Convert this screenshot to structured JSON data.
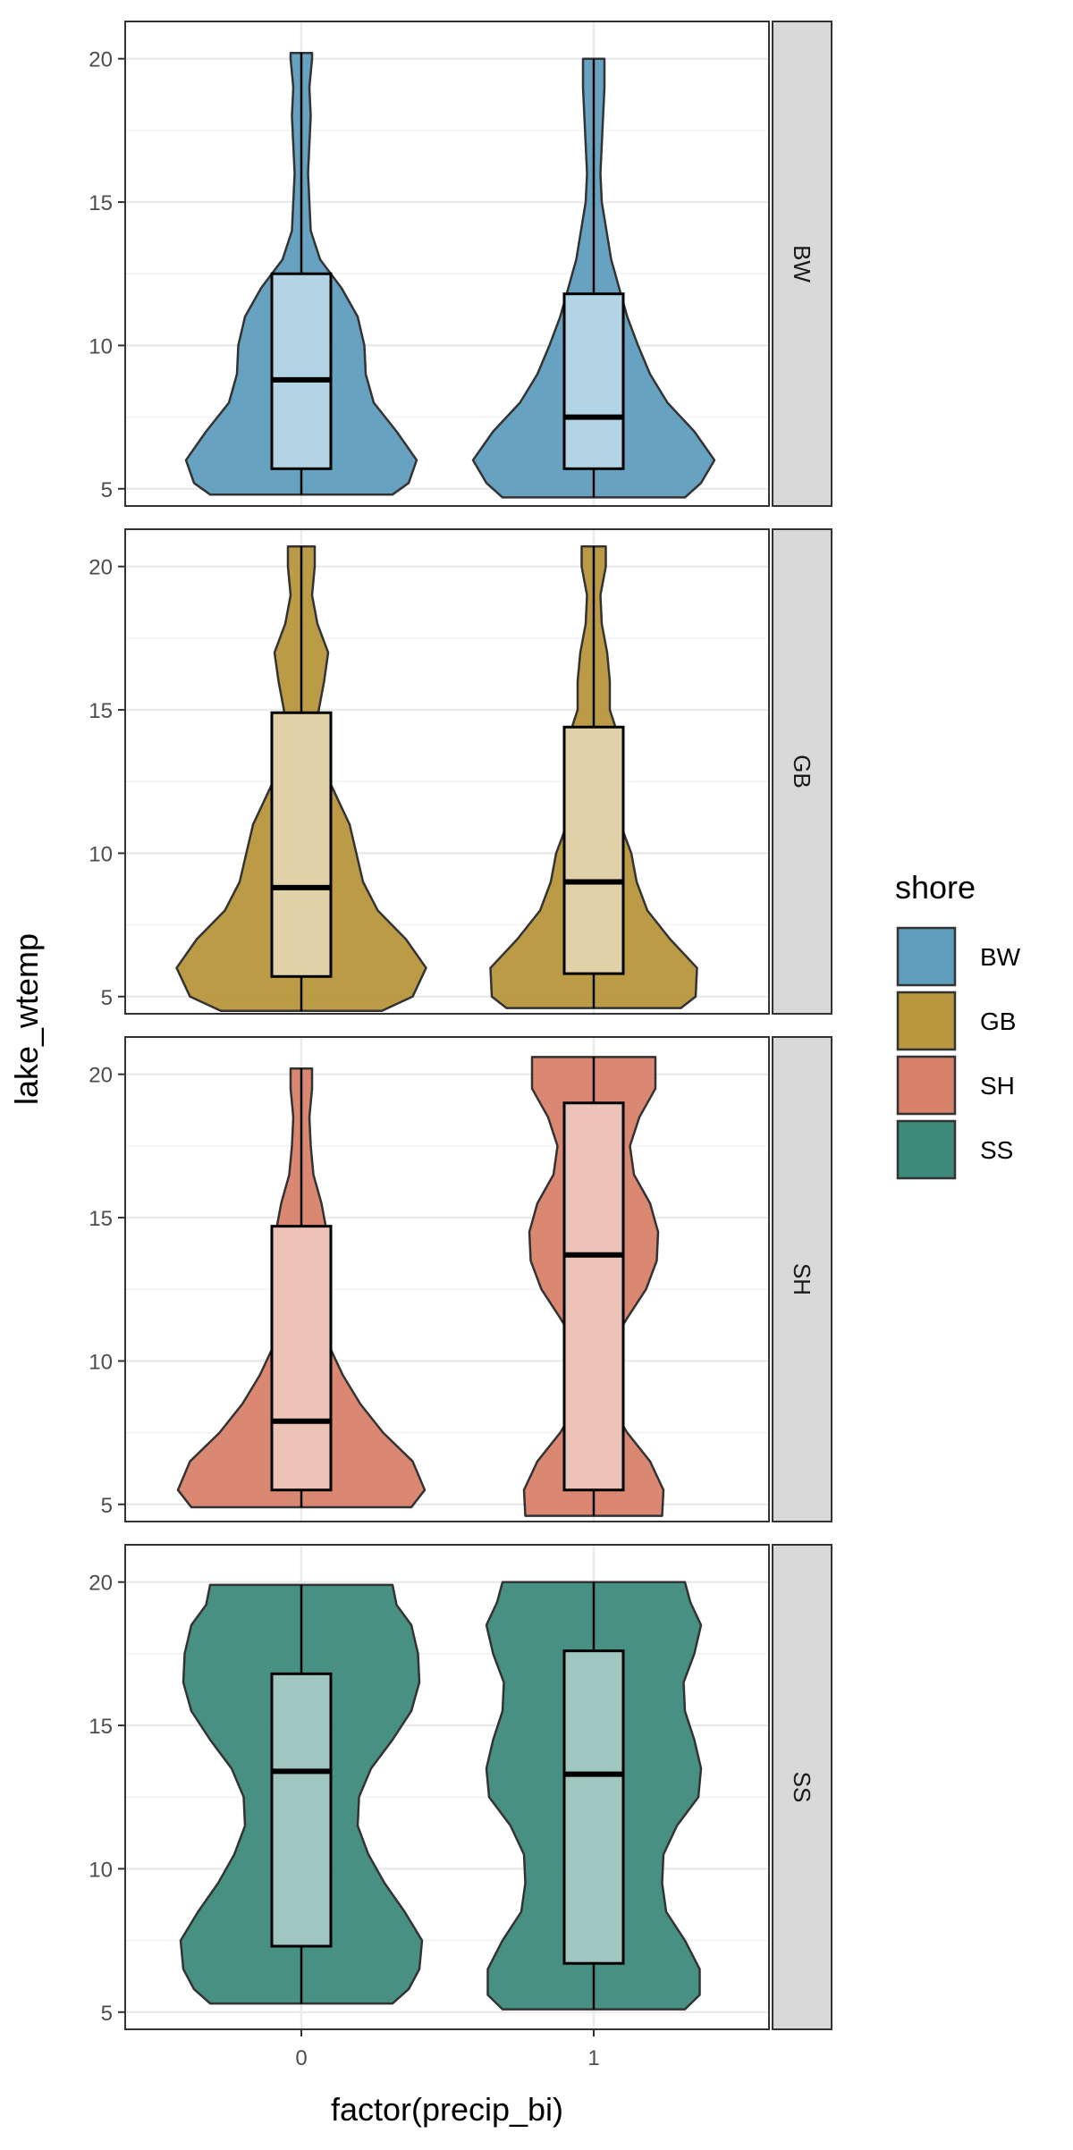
{
  "chart_data": {
    "type": "violin",
    "xlabel": "factor(precip_bi)",
    "ylabel": "lake_wtemp",
    "categories": [
      "0",
      "1"
    ],
    "ylim": [
      4.4,
      21.3
    ],
    "yticks": [
      5,
      10,
      15,
      20
    ],
    "facet_labels": [
      "BW",
      "GB",
      "SH",
      "SS"
    ],
    "legend": {
      "title": "shore",
      "placement": "right",
      "entries": [
        {
          "label": "BW",
          "color": "#5f9dbd"
        },
        {
          "label": "GB",
          "color": "#b8963d"
        },
        {
          "label": "SH",
          "color": "#d8826a"
        },
        {
          "label": "SS",
          "color": "#3e8a7c"
        }
      ]
    },
    "grid": true,
    "panels": [
      {
        "facet": "BW",
        "color": "#5f9dbd",
        "box_fill": "#b3d4e4",
        "groups": [
          {
            "x": "0",
            "min": 4.8,
            "q1": 5.7,
            "median": 8.8,
            "q3": 12.5,
            "max": 20.2,
            "density": [
              [
                4.8,
                0.68
              ],
              [
                5.2,
                0.8
              ],
              [
                6,
                0.86
              ],
              [
                7,
                0.71
              ],
              [
                8,
                0.54
              ],
              [
                9,
                0.48
              ],
              [
                10,
                0.47
              ],
              [
                11,
                0.42
              ],
              [
                12,
                0.3
              ],
              [
                13,
                0.14
              ],
              [
                14,
                0.07
              ],
              [
                16,
                0.05
              ],
              [
                18,
                0.07
              ],
              [
                19,
                0.06
              ],
              [
                20,
                0.08
              ],
              [
                20.2,
                0.08
              ]
            ]
          },
          {
            "x": "1",
            "min": 4.7,
            "q1": 5.7,
            "median": 7.5,
            "q3": 11.8,
            "max": 20.0,
            "density": [
              [
                4.7,
                0.68
              ],
              [
                5.2,
                0.8
              ],
              [
                6,
                0.9
              ],
              [
                7,
                0.75
              ],
              [
                8,
                0.55
              ],
              [
                9,
                0.42
              ],
              [
                10,
                0.33
              ],
              [
                11,
                0.25
              ],
              [
                12,
                0.19
              ],
              [
                13,
                0.13
              ],
              [
                15,
                0.06
              ],
              [
                16,
                0.05
              ],
              [
                17,
                0.06
              ],
              [
                18,
                0.07
              ],
              [
                19,
                0.08
              ],
              [
                20,
                0.08
              ]
            ]
          }
        ]
      },
      {
        "facet": "GB",
        "color": "#b8963d",
        "box_fill": "#e1d1a9",
        "groups": [
          {
            "x": "0",
            "min": 4.5,
            "q1": 5.7,
            "median": 8.8,
            "q3": 14.9,
            "max": 20.7,
            "density": [
              [
                4.5,
                0.6
              ],
              [
                5,
                0.83
              ],
              [
                6,
                0.93
              ],
              [
                7,
                0.78
              ],
              [
                8,
                0.57
              ],
              [
                9,
                0.46
              ],
              [
                10,
                0.41
              ],
              [
                11,
                0.36
              ],
              [
                12,
                0.26
              ],
              [
                13,
                0.16
              ],
              [
                14,
                0.11
              ],
              [
                15,
                0.13
              ],
              [
                16,
                0.17
              ],
              [
                17,
                0.2
              ],
              [
                18,
                0.12
              ],
              [
                19,
                0.08
              ],
              [
                20,
                0.1
              ],
              [
                20.7,
                0.1
              ]
            ]
          },
          {
            "x": "1",
            "min": 4.6,
            "q1": 5.8,
            "median": 9.0,
            "q3": 14.4,
            "max": 20.7,
            "density": [
              [
                4.6,
                0.65
              ],
              [
                5,
                0.76
              ],
              [
                6,
                0.77
              ],
              [
                7,
                0.57
              ],
              [
                8,
                0.4
              ],
              [
                9,
                0.32
              ],
              [
                10,
                0.28
              ],
              [
                11,
                0.2
              ],
              [
                12,
                0.19
              ],
              [
                13,
                0.2
              ],
              [
                14,
                0.19
              ],
              [
                15,
                0.12
              ],
              [
                16,
                0.12
              ],
              [
                17,
                0.1
              ],
              [
                18,
                0.06
              ],
              [
                19,
                0.05
              ],
              [
                20,
                0.09
              ],
              [
                20.7,
                0.09
              ]
            ]
          }
        ]
      },
      {
        "facet": "SH",
        "color": "#d8826a",
        "box_fill": "#ecc3b6",
        "groups": [
          {
            "x": "0",
            "min": 4.9,
            "q1": 5.5,
            "median": 7.9,
            "q3": 14.7,
            "max": 20.2,
            "density": [
              [
                4.9,
                0.82
              ],
              [
                5.5,
                0.92
              ],
              [
                6.5,
                0.83
              ],
              [
                7.5,
                0.61
              ],
              [
                8.5,
                0.44
              ],
              [
                9.5,
                0.31
              ],
              [
                10.5,
                0.21
              ],
              [
                11.5,
                0.14
              ],
              [
                12.5,
                0.11
              ],
              [
                13.5,
                0.15
              ],
              [
                14.5,
                0.19
              ],
              [
                15.5,
                0.15
              ],
              [
                16.5,
                0.09
              ],
              [
                17.5,
                0.07
              ],
              [
                18.5,
                0.06
              ],
              [
                19.5,
                0.08
              ],
              [
                20.2,
                0.08
              ]
            ]
          },
          {
            "x": "1",
            "min": 4.6,
            "q1": 5.5,
            "median": 13.7,
            "q3": 19.0,
            "max": 20.6,
            "density": [
              [
                4.6,
                0.51
              ],
              [
                5.5,
                0.52
              ],
              [
                6.5,
                0.42
              ],
              [
                7.5,
                0.25
              ],
              [
                8.5,
                0.12
              ],
              [
                9.5,
                0.04
              ],
              [
                10.5,
                0.12
              ],
              [
                11.5,
                0.25
              ],
              [
                12.5,
                0.39
              ],
              [
                13.5,
                0.47
              ],
              [
                14.5,
                0.48
              ],
              [
                15.5,
                0.42
              ],
              [
                16.5,
                0.3
              ],
              [
                17.5,
                0.27
              ],
              [
                18.5,
                0.34
              ],
              [
                19.5,
                0.46
              ],
              [
                20.6,
                0.46
              ]
            ]
          }
        ]
      },
      {
        "facet": "SS",
        "color": "#3e8a7c",
        "box_fill": "#9fc6bf",
        "groups": [
          {
            "x": "0",
            "min": 5.3,
            "q1": 7.3,
            "median": 13.4,
            "q3": 16.8,
            "max": 19.9,
            "density": [
              [
                5.3,
                0.68
              ],
              [
                5.8,
                0.8
              ],
              [
                6.5,
                0.88
              ],
              [
                7.5,
                0.9
              ],
              [
                8.5,
                0.77
              ],
              [
                9.5,
                0.62
              ],
              [
                10.5,
                0.5
              ],
              [
                11.5,
                0.42
              ],
              [
                12.5,
                0.43
              ],
              [
                13.5,
                0.52
              ],
              [
                14.5,
                0.68
              ],
              [
                15.5,
                0.82
              ],
              [
                16.5,
                0.88
              ],
              [
                17.5,
                0.87
              ],
              [
                18.5,
                0.82
              ],
              [
                19.2,
                0.71
              ],
              [
                19.9,
                0.68
              ]
            ]
          },
          {
            "x": "1",
            "min": 5.1,
            "q1": 6.7,
            "median": 13.3,
            "q3": 17.6,
            "max": 20.0,
            "density": [
              [
                5.1,
                0.68
              ],
              [
                5.6,
                0.79
              ],
              [
                6.5,
                0.79
              ],
              [
                7.5,
                0.68
              ],
              [
                8.5,
                0.54
              ],
              [
                9.5,
                0.51
              ],
              [
                10.5,
                0.52
              ],
              [
                11.5,
                0.62
              ],
              [
                12.5,
                0.78
              ],
              [
                13.5,
                0.8
              ],
              [
                14.5,
                0.75
              ],
              [
                15.5,
                0.68
              ],
              [
                16.5,
                0.67
              ],
              [
                17.5,
                0.75
              ],
              [
                18.5,
                0.8
              ],
              [
                19.3,
                0.72
              ],
              [
                20,
                0.68
              ]
            ]
          }
        ]
      }
    ]
  }
}
